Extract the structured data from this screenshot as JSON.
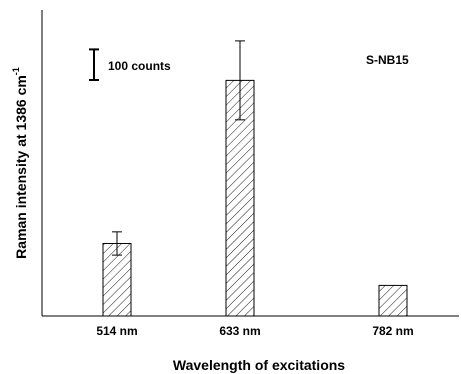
{
  "chart_data": {
    "type": "bar",
    "categories": [
      "514 nm",
      "633 nm",
      "782 nm"
    ],
    "values": [
      237,
      770,
      100
    ],
    "errors": [
      38,
      129,
      0
    ],
    "xlabel": "Wavelength of excitations",
    "ylabel_main": "Raman intensity at 1386 cm",
    "ylabel_sup": "-1",
    "ylim": [
      0,
      1000
    ],
    "scale_bar": {
      "label": "100 counts",
      "value": 100
    },
    "sample_label": "S-NB15",
    "bar_pattern": "diagonal-hatch",
    "grid": false
  }
}
